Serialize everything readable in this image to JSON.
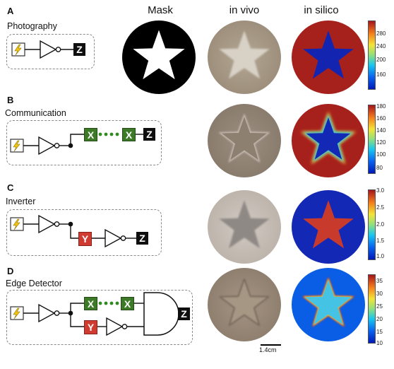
{
  "columns": {
    "mask": "Mask",
    "in_vivo": "in vivo",
    "in_silico": "in silico"
  },
  "panels": [
    {
      "letter": "A",
      "title": "Photography",
      "colorbar_ticks": [
        "280",
        "240",
        "200",
        "160"
      ]
    },
    {
      "letter": "B",
      "title": "Communication",
      "colorbar_ticks": [
        "180",
        "160",
        "140",
        "120",
        "100",
        "80"
      ]
    },
    {
      "letter": "C",
      "title": "Inverter",
      "colorbar_ticks": [
        "3.0",
        "2.5",
        "2.0",
        "1.5",
        "1.0"
      ]
    },
    {
      "letter": "D",
      "title": "Edge Detector",
      "colorbar_ticks": [
        "35",
        "30",
        "25",
        "20",
        "15",
        "10"
      ]
    }
  ],
  "gates": {
    "z": "Z",
    "x": "X",
    "y": "Y"
  },
  "scale_bar": "1.4cm",
  "colors": {
    "jet_top": "#b2171e",
    "jet_bottom": "#1020b8",
    "gate_green": "#3c7a28",
    "gate_red": "#cf3b31",
    "gate_black": "#0f0f0f",
    "sensor_yellow": "#f1c40f"
  }
}
